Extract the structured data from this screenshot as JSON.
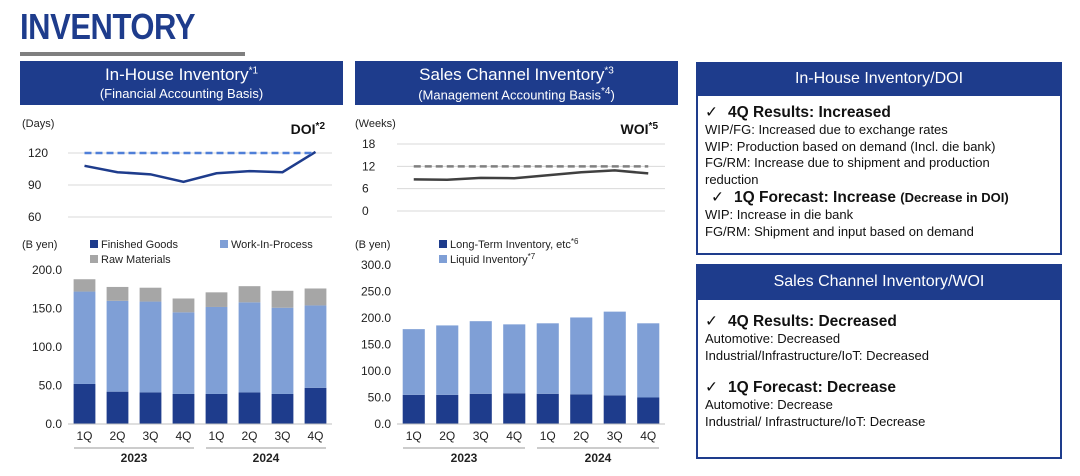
{
  "page_title": "INVENTORY",
  "left_header": {
    "title": "In-House Inventory",
    "title_sup": "*1",
    "subtitle": "(Financial Accounting Basis)"
  },
  "mid_header": {
    "title": "Sales Channel Inventory",
    "title_sup": "*3",
    "subtitle": "(Management Accounting Basis",
    "subtitle_sup": "*4",
    "subtitle_end": ")"
  },
  "chart_data": [
    {
      "type": "line",
      "title": "DOI",
      "title_sup": "*2",
      "ylabel": "(Days)",
      "ylim": [
        60,
        120
      ],
      "yticks": [
        "120",
        "90",
        "60"
      ],
      "categories": [
        "1Q",
        "2Q",
        "3Q",
        "4Q",
        "1Q",
        "2Q",
        "3Q",
        "4Q"
      ],
      "series": [
        {
          "values": [
            108,
            102,
            100,
            93,
            101,
            103,
            102,
            121
          ],
          "color": "#1e3c8c",
          "style": "solid"
        },
        {
          "values": [
            120,
            120,
            120,
            120,
            120,
            120,
            120,
            120
          ],
          "color": "#4f7fd8",
          "style": "dashed"
        }
      ]
    },
    {
      "type": "bar",
      "stacked": true,
      "ylabel": "(B yen)",
      "ylim": [
        0,
        200
      ],
      "yticks": [
        "200.0",
        "150.0",
        "100.0",
        "50.0",
        "0.0"
      ],
      "categories": [
        "1Q",
        "2Q",
        "3Q",
        "4Q",
        "1Q",
        "2Q",
        "3Q",
        "4Q"
      ],
      "groups": [
        "2023",
        "2024"
      ],
      "series": [
        {
          "name": "Finished Goods",
          "color": "#1e3c8c",
          "values": [
            52,
            42,
            41,
            39,
            39,
            41,
            39,
            47
          ]
        },
        {
          "name": "Work-In-Process",
          "color": "#7f9fd6",
          "values": [
            120,
            118,
            118,
            106,
            113,
            117,
            112,
            107
          ]
        },
        {
          "name": "Raw Materials",
          "color": "#a6a6a6",
          "values": [
            16,
            18,
            18,
            18,
            19,
            21,
            22,
            22
          ]
        }
      ]
    },
    {
      "type": "line",
      "title": "WOI",
      "title_sup": "*5",
      "ylabel": "(Weeks)",
      "ylim": [
        0,
        18
      ],
      "yticks": [
        "18",
        "12",
        "6",
        "0"
      ],
      "categories": [
        "1Q",
        "2Q",
        "3Q",
        "4Q",
        "1Q",
        "2Q",
        "3Q",
        "4Q"
      ],
      "series": [
        {
          "values": [
            8.5,
            8.4,
            8.9,
            8.8,
            9.6,
            10.4,
            10.9,
            10.1
          ],
          "color": "#404040",
          "style": "solid"
        },
        {
          "values": [
            12,
            12,
            12,
            12,
            12,
            12,
            12,
            12
          ],
          "color": "#808080",
          "style": "dashed"
        }
      ]
    },
    {
      "type": "bar",
      "stacked": true,
      "ylabel": "(B yen)",
      "ylim": [
        0,
        300
      ],
      "yticks": [
        "300.0",
        "250.0",
        "200.0",
        "150.0",
        "100.0",
        "50.0",
        "0.0"
      ],
      "categories": [
        "1Q",
        "2Q",
        "3Q",
        "4Q",
        "1Q",
        "2Q",
        "3Q",
        "4Q"
      ],
      "groups": [
        "2023",
        "2024"
      ],
      "series": [
        {
          "name": "Long-Term Inventory, etc",
          "name_sup": "*6",
          "color": "#1e3c8c",
          "values": [
            55,
            55,
            57,
            58,
            57,
            56,
            54,
            50
          ]
        },
        {
          "name": "Liquid Inventory",
          "name_sup": "*7",
          "color": "#7f9fd6",
          "values": [
            124,
            131,
            137,
            130,
            133,
            145,
            158,
            140
          ]
        }
      ]
    }
  ],
  "doi_box": {
    "header": "In-House Inventory/DOI",
    "r4q_title": "4Q Results: Increased",
    "r4q_lines": [
      "WIP/FG: Increased due to exchange rates",
      "WIP: Production based on demand (Incl. die bank)",
      "FG/RM: Increase due to shipment and production",
      "reduction"
    ],
    "f1q_title": "1Q Forecast: Increase",
    "f1q_note": "(Decrease in DOI)",
    "f1q_lines": [
      "WIP: Increase in die bank",
      "FG/RM: Shipment and input based on demand"
    ]
  },
  "woi_box": {
    "header": "Sales Channel Inventory/WOI",
    "r4q_title": "4Q Results: Decreased",
    "r4q_lines": [
      "Automotive: Decreased",
      "Industrial/Infrastructure/IoT: Decreased"
    ],
    "f1q_title": "1Q Forecast: Decrease",
    "f1q_lines": [
      "Automotive: Decrease",
      "Industrial/ Infrastructure/IoT: Decrease"
    ]
  },
  "check_mark": "✓"
}
